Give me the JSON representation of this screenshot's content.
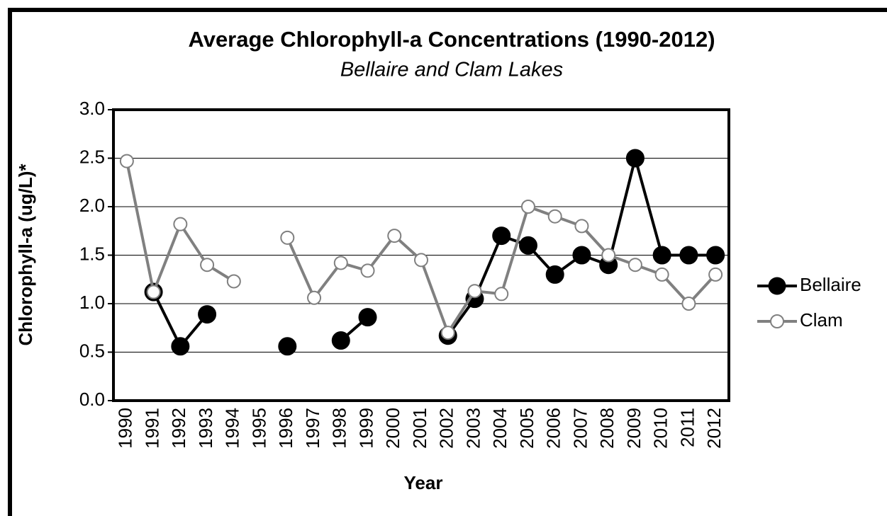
{
  "chart_data": {
    "type": "line",
    "title": "Average Chlorophyll-a Concentrations (1990-2012)",
    "subtitle": "Bellaire and Clam Lakes",
    "x_label": "Year",
    "y_label": "Chlorophyll-a (ug/L)*",
    "categories": [
      "1990",
      "1991",
      "1992",
      "1993",
      "1994",
      "1995",
      "1996",
      "1997",
      "1998",
      "1999",
      "2000",
      "2001",
      "2002",
      "2003",
      "2004",
      "2005",
      "2006",
      "2007",
      "2008",
      "2009",
      "2010",
      "2011",
      "2012"
    ],
    "series": [
      {
        "name": "Bellaire",
        "color": "#000000",
        "values": [
          null,
          1.12,
          0.56,
          0.89,
          null,
          null,
          0.56,
          null,
          0.62,
          0.86,
          null,
          null,
          0.67,
          1.05,
          1.7,
          1.6,
          1.3,
          1.5,
          1.4,
          2.5,
          1.5,
          1.5,
          1.5
        ]
      },
      {
        "name": "Clam",
        "color": "#808080",
        "values": [
          2.47,
          1.12,
          1.82,
          1.4,
          1.23,
          null,
          1.68,
          1.06,
          1.42,
          1.34,
          1.7,
          1.45,
          0.7,
          1.13,
          1.1,
          2.0,
          1.9,
          1.8,
          1.5,
          1.4,
          1.3,
          1.0,
          1.3
        ]
      }
    ],
    "ylim": [
      0,
      3
    ],
    "yticks": [
      {
        "value": 0,
        "label": "0.0"
      },
      {
        "value": 0.5,
        "label": "0.5"
      },
      {
        "value": 1,
        "label": "1.0"
      },
      {
        "value": 1.5,
        "label": "1.5"
      },
      {
        "value": 2,
        "label": "2.0"
      },
      {
        "value": 2.5,
        "label": "2.5"
      },
      {
        "value": 3,
        "label": "3.0"
      }
    ],
    "grid": true,
    "legend": "right"
  }
}
